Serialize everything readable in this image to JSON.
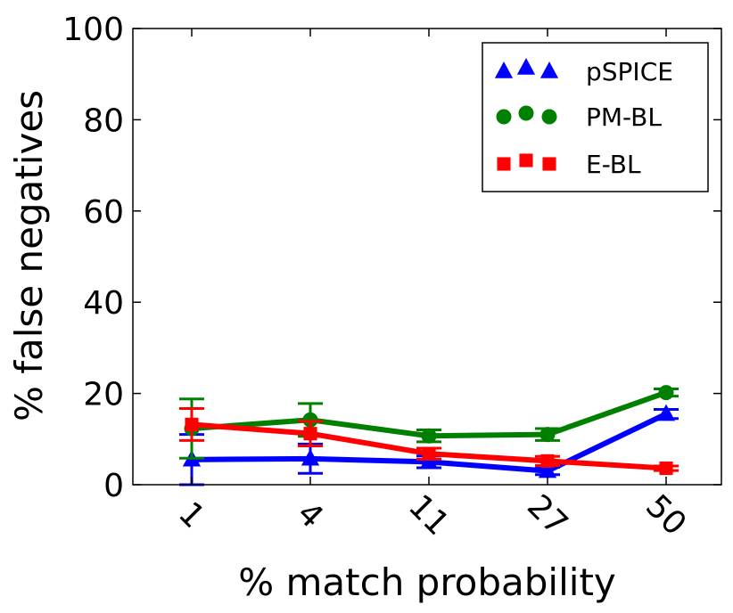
{
  "chart_data": {
    "type": "line",
    "title": "",
    "xlabel": "% match probability",
    "ylabel": "% false negatives",
    "categories": [
      "1",
      "4",
      "11",
      "27",
      "50"
    ],
    "ylim": [
      0,
      100
    ],
    "yticks": [
      0,
      20,
      40,
      60,
      80,
      100
    ],
    "grid": false,
    "legend_position": "top-right",
    "series": [
      {
        "name": "pSPICE",
        "color": "#0000ff",
        "marker": "triangle",
        "values": [
          5.5,
          5.7,
          5.0,
          3.0,
          15.5
        ],
        "errors": [
          5.5,
          3.2,
          1.3,
          0.8,
          1.0
        ]
      },
      {
        "name": "PM-BL",
        "color": "#008000",
        "marker": "circle",
        "values": [
          12.3,
          14.2,
          10.7,
          11.0,
          20.2
        ],
        "errors": [
          6.5,
          3.6,
          1.3,
          1.3,
          0.8
        ]
      },
      {
        "name": "E-BL",
        "color": "#ff0000",
        "marker": "square",
        "values": [
          13.2,
          11.2,
          6.8,
          5.2,
          3.6
        ],
        "errors": [
          3.5,
          2.7,
          1.2,
          1.0,
          0.5
        ]
      }
    ]
  }
}
